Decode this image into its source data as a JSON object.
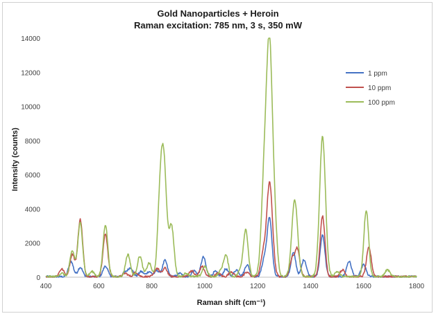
{
  "chart_data": {
    "type": "line",
    "title": "Gold Nanoparticles + Heroin",
    "subtitle": "Raman excitation: 785 nm, 3 s, 350 mW",
    "xlabel": "Raman shift (cm⁻¹)",
    "ylabel": "Intensity (counts)",
    "xlim": [
      400,
      1800
    ],
    "ylim": [
      0,
      14000
    ],
    "xticks": [
      "400",
      "600",
      "800",
      "1000",
      "1200",
      "1400",
      "1600",
      "1800"
    ],
    "yticks": [
      "0",
      "2000",
      "4000",
      "6000",
      "8000",
      "10000",
      "12000",
      "14000"
    ],
    "grid": false,
    "legend_position": "right",
    "colors": {
      "1 ppm": "#4472c4",
      "10 ppm": "#c0504d",
      "100 ppm": "#9bbb59"
    },
    "series": [
      {
        "name": "1 ppm",
        "color": "#4472c4",
        "peaks": [
          [
            495,
            900
          ],
          [
            530,
            550
          ],
          [
            625,
            620
          ],
          [
            700,
            250
          ],
          [
            720,
            500
          ],
          [
            760,
            300
          ],
          [
            790,
            300
          ],
          [
            820,
            350
          ],
          [
            850,
            950
          ],
          [
            905,
            200
          ],
          [
            960,
            350
          ],
          [
            995,
            1150
          ],
          [
            1040,
            300
          ],
          [
            1080,
            450
          ],
          [
            1120,
            400
          ],
          [
            1160,
            700
          ],
          [
            1225,
            1000
          ],
          [
            1245,
            3400
          ],
          [
            1335,
            1400
          ],
          [
            1375,
            1000
          ],
          [
            1445,
            2450
          ],
          [
            1545,
            900
          ],
          [
            1600,
            700
          ]
        ]
      },
      {
        "name": "10 ppm",
        "color": "#c0504d",
        "peaks": [
          [
            460,
            450
          ],
          [
            500,
            1300
          ],
          [
            530,
            3350
          ],
          [
            625,
            2500
          ],
          [
            700,
            200
          ],
          [
            740,
            250
          ],
          [
            820,
            500
          ],
          [
            850,
            500
          ],
          [
            950,
            350
          ],
          [
            990,
            600
          ],
          [
            1050,
            200
          ],
          [
            1100,
            300
          ],
          [
            1160,
            250
          ],
          [
            1220,
            1200
          ],
          [
            1245,
            5500
          ],
          [
            1330,
            1000
          ],
          [
            1350,
            1600
          ],
          [
            1445,
            3550
          ],
          [
            1520,
            400
          ],
          [
            1620,
            1700
          ]
        ]
      },
      {
        "name": "100 ppm",
        "color": "#9bbb59",
        "peaks": [
          [
            460,
            200
          ],
          [
            500,
            1500
          ],
          [
            530,
            3150
          ],
          [
            575,
            300
          ],
          [
            625,
            3050
          ],
          [
            710,
            1300
          ],
          [
            755,
            1200
          ],
          [
            790,
            800
          ],
          [
            830,
            3100
          ],
          [
            845,
            6750
          ],
          [
            875,
            2900
          ],
          [
            930,
            200
          ],
          [
            1000,
            600
          ],
          [
            1060,
            300
          ],
          [
            1080,
            1250
          ],
          [
            1135,
            350
          ],
          [
            1155,
            2750
          ],
          [
            1225,
            5500
          ],
          [
            1245,
            12950
          ],
          [
            1265,
            2500
          ],
          [
            1340,
            4500
          ],
          [
            1445,
            8200
          ],
          [
            1500,
            300
          ],
          [
            1610,
            3900
          ],
          [
            1690,
            400
          ]
        ]
      }
    ]
  }
}
